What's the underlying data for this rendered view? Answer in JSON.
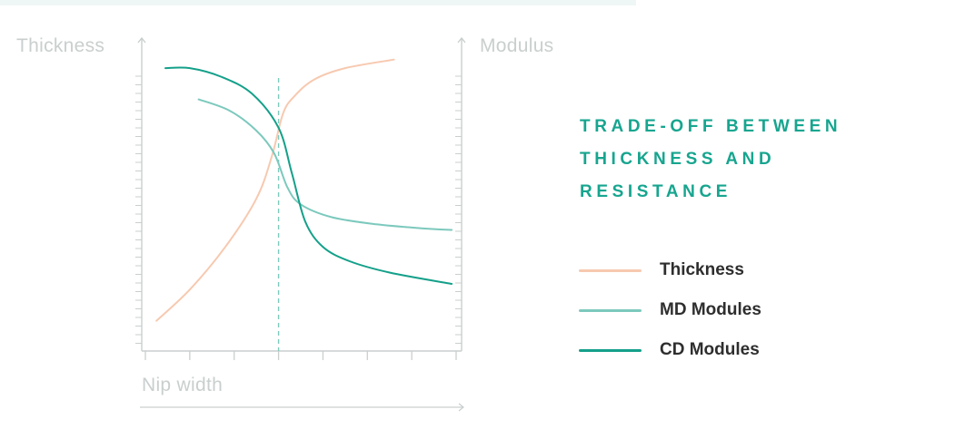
{
  "chart_data": {
    "type": "line",
    "title_lines": [
      "TRADE-OFF BETWEEN",
      "THICKNESS AND",
      "RESISTANCE"
    ],
    "xlabel": "Nip width",
    "ylabel_left": "Thickness",
    "ylabel_right": "Modulus",
    "x_ticks": 7,
    "reference_line_x": 3,
    "grid": false,
    "legend_position": "right",
    "xlim": [
      0,
      7
    ],
    "ylim": [
      0,
      100
    ],
    "series": [
      {
        "name": "Thickness",
        "color": "#f7c9b0",
        "points": [
          [
            0.25,
            10
          ],
          [
            1.0,
            21
          ],
          [
            1.8,
            36
          ],
          [
            2.5,
            53
          ],
          [
            2.85,
            68
          ],
          [
            3.1,
            83
          ],
          [
            3.35,
            89
          ],
          [
            3.8,
            95
          ],
          [
            4.5,
            99
          ],
          [
            5.6,
            102
          ]
        ]
      },
      {
        "name": "MD Modules",
        "color": "#7cc9bd",
        "points": [
          [
            1.2,
            88
          ],
          [
            1.9,
            84
          ],
          [
            2.5,
            77
          ],
          [
            2.9,
            69
          ],
          [
            3.2,
            57
          ],
          [
            3.5,
            51
          ],
          [
            4.2,
            46.5
          ],
          [
            5.2,
            44
          ],
          [
            6.3,
            42.5
          ],
          [
            6.9,
            42
          ]
        ]
      },
      {
        "name": "CD Modules",
        "color": "#14a08a",
        "points": [
          [
            0.45,
            99
          ],
          [
            1.0,
            99
          ],
          [
            1.7,
            96
          ],
          [
            2.4,
            90
          ],
          [
            3.0,
            78
          ],
          [
            3.3,
            62
          ],
          [
            3.6,
            45
          ],
          [
            4.0,
            36
          ],
          [
            4.6,
            31
          ],
          [
            5.5,
            27
          ],
          [
            6.9,
            23
          ]
        ]
      }
    ]
  },
  "colors": {
    "axis": "#c9cfce",
    "title": "#17a58f",
    "reference_line": "#7cc9bd",
    "legend_text": "#2e2e2e"
  }
}
